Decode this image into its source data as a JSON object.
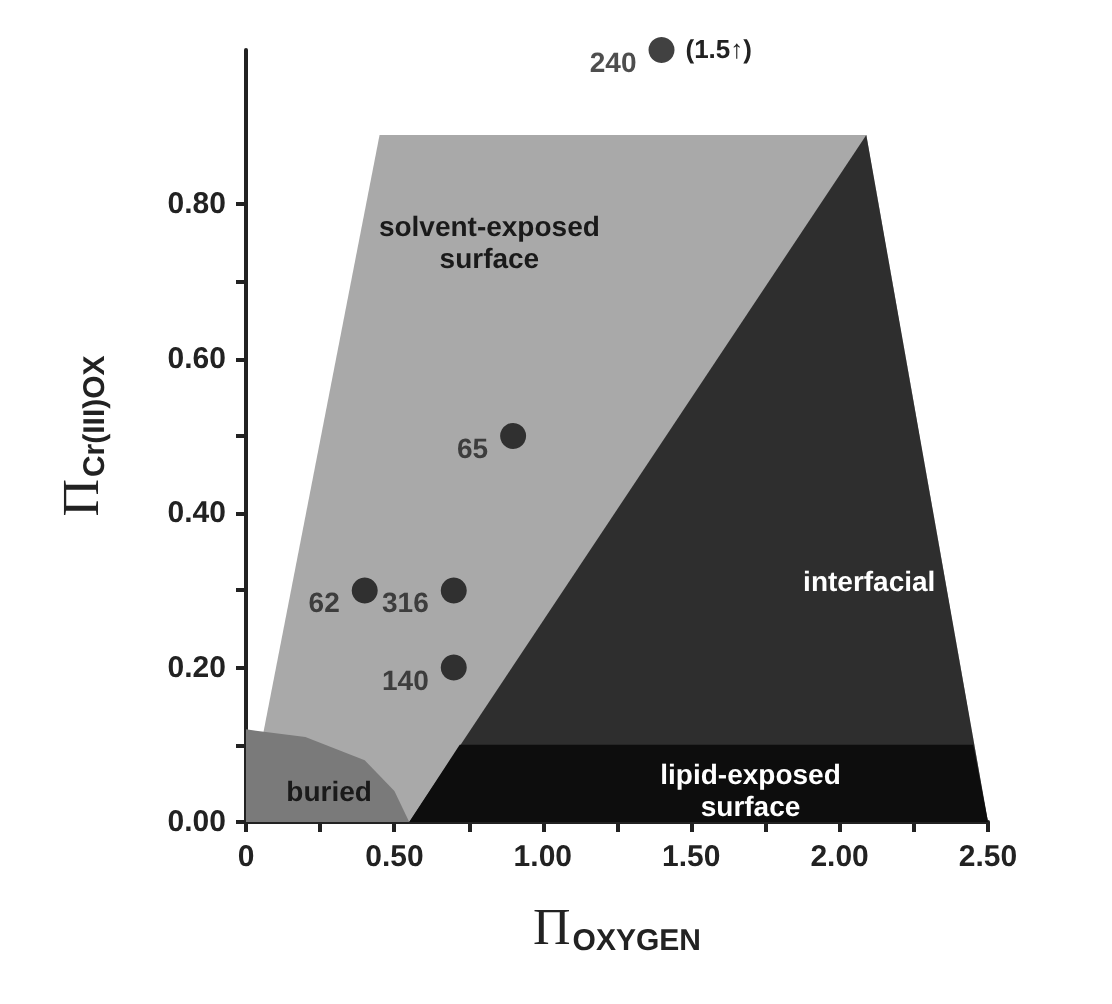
{
  "chart_data": {
    "type": "scatter",
    "xlabel": "Π$_{OXYGEN}$",
    "ylabel": "Π$_{Cr(III)OX}$",
    "xlim": [
      0,
      2.5
    ],
    "ylim": [
      0,
      1.0
    ],
    "xticks": [
      0,
      {
        "value": 0.25,
        "label": null
      },
      {
        "value": 0.5,
        "label": "0.50"
      },
      {
        "value": 0.75,
        "label": null
      },
      {
        "value": 1,
        "label": "1.00"
      },
      {
        "value": 1.25,
        "label": null
      },
      {
        "value": 1.5,
        "label": "1.50"
      },
      {
        "value": 1.75,
        "label": null
      },
      {
        "value": 2,
        "label": "2.00"
      },
      {
        "value": 2.25,
        "label": null
      },
      {
        "value": 2.5,
        "label": "2.50"
      }
    ],
    "yticks": [
      {
        "value": 0,
        "label": "0.00"
      },
      {
        "value": 0.1,
        "label": null
      },
      {
        "value": 0.2,
        "label": "0.20"
      },
      {
        "value": 0.3,
        "label": null
      },
      {
        "value": 0.4,
        "label": "0.40"
      },
      {
        "value": 0.5,
        "label": null
      },
      {
        "value": 0.6,
        "label": "0.60"
      },
      {
        "value": 0.7,
        "label": null
      },
      {
        "value": 0.8,
        "label": "0.80"
      }
    ],
    "grid": false,
    "marker": "circle",
    "series": [
      {
        "type": "area",
        "marker": "none",
        "color": "#a9a9a9",
        "x": [
          0,
          0.45,
          2.09,
          2.5
        ],
        "values": [
          0,
          0.89,
          0.89,
          0
        ]
      },
      {
        "type": "area",
        "marker": "none",
        "color": "#2e2e2e",
        "x": [
          0.55,
          2.09,
          2.5
        ],
        "values": [
          0,
          0.89,
          0
        ]
      },
      {
        "type": "area",
        "marker": "none",
        "color": "#0d0d0d",
        "x": [
          0.55,
          0.72,
          2.45,
          2.5
        ],
        "values": [
          0,
          0.1,
          0.1,
          0
        ]
      },
      {
        "type": "area",
        "marker": "none",
        "color": "#7a7a7a",
        "x": [
          0,
          0.2,
          0.4,
          0.5,
          0.55
        ],
        "values": [
          0.12,
          0.11,
          0.08,
          0.04,
          0
        ]
      },
      {
        "name": "62",
        "color": "#111111",
        "x": [
          0.4
        ],
        "values": [
          0.3
        ]
      },
      {
        "name": "316",
        "color": "#111111",
        "x": [
          0.7
        ],
        "values": [
          0.3
        ]
      },
      {
        "name": "140",
        "color": "#111111",
        "x": [
          0.7
        ],
        "values": [
          0.2
        ]
      },
      {
        "name": "65",
        "color": "#111111",
        "x": [
          0.9
        ],
        "values": [
          0.5
        ]
      },
      {
        "name": "240",
        "color": "#111111",
        "x": [
          1.4
        ],
        "values": [
          1.0
        ]
      }
    ],
    "annotations": [
      "solvent-exposed surface",
      "interfacial",
      "lipid-exposed  surface",
      "buried",
      {
        "text": "(1.5↑)",
        "x": 1.4,
        "y": 1.0
      }
    ]
  }
}
